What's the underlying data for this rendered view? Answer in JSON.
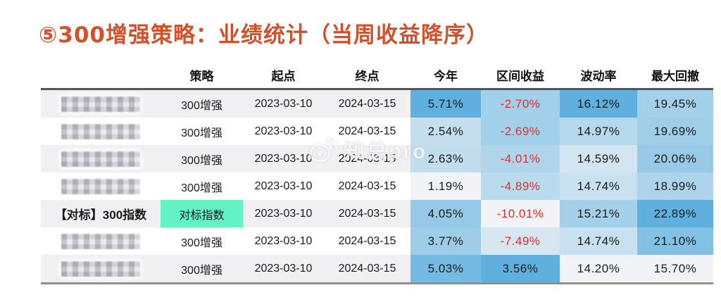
{
  "title": "⑤300增强策略：业绩统计（当周收益降序）",
  "watermark": {
    "text": "知总pro",
    "icon": "weibo-eye-icon"
  },
  "colors": {
    "title": "#D0512A",
    "negative_text": "#EE2B25",
    "heat_min": "#F1F3F6",
    "heat_max": "#5FB0DE",
    "benchmark_green": "#63F2C3",
    "stripe": "#F0F0F2",
    "border_top": "#555555",
    "border_bottom": "#8F8F8F"
  },
  "table": {
    "columns": [
      "",
      "策略",
      "起点",
      "终点",
      "今年",
      "区间收益",
      "波动率",
      "最大回撤"
    ],
    "heat_columns": [
      "ytd",
      "interval",
      "volatility",
      "max_drawdown"
    ],
    "rows": [
      {
        "name": "",
        "redacted": true,
        "benchmark": false,
        "strategy": "300增强",
        "start": "2023-03-10",
        "end": "2024-03-15",
        "ytd": "5.71%",
        "interval": "-2.70%",
        "volatility": "16.12%",
        "max_drawdown": "19.45%"
      },
      {
        "name": "",
        "redacted": true,
        "benchmark": false,
        "strategy": "300增强",
        "start": "2023-03-10",
        "end": "2024-03-15",
        "ytd": "2.54%",
        "interval": "-2.69%",
        "volatility": "14.97%",
        "max_drawdown": "19.69%"
      },
      {
        "name": "",
        "redacted": true,
        "benchmark": false,
        "strategy": "300增强",
        "start": "2023-03-10",
        "end": "2024-03-15",
        "ytd": "2.63%",
        "interval": "-4.01%",
        "volatility": "14.59%",
        "max_drawdown": "20.06%"
      },
      {
        "name": "",
        "redacted": true,
        "benchmark": false,
        "strategy": "300增强",
        "start": "2023-03-10",
        "end": "2024-03-15",
        "ytd": "1.19%",
        "interval": "-4.89%",
        "volatility": "14.74%",
        "max_drawdown": "18.99%"
      },
      {
        "name": "【对标】300指数",
        "redacted": false,
        "benchmark": true,
        "strategy": "对标指数",
        "start": "2023-03-10",
        "end": "2024-03-15",
        "ytd": "4.05%",
        "interval": "-10.01%",
        "volatility": "15.21%",
        "max_drawdown": "22.89%"
      },
      {
        "name": "",
        "redacted": true,
        "benchmark": false,
        "strategy": "300增强",
        "start": "2023-03-10",
        "end": "2024-03-15",
        "ytd": "3.77%",
        "interval": "-7.49%",
        "volatility": "14.74%",
        "max_drawdown": "21.10%"
      },
      {
        "name": "",
        "redacted": true,
        "benchmark": false,
        "strategy": "300增强",
        "start": "2023-03-10",
        "end": "2024-03-15",
        "ytd": "5.03%",
        "interval": "3.56%",
        "volatility": "14.20%",
        "max_drawdown": "15.70%"
      }
    ]
  }
}
